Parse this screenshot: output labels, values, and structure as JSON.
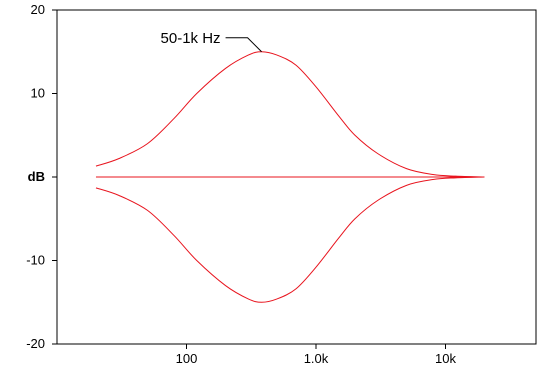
{
  "chart_data": {
    "type": "line",
    "title": "",
    "xlabel": "",
    "ylabel": "dB",
    "x_scale": "log",
    "xlim": [
      10,
      50000
    ],
    "ylim": [
      -20,
      20
    ],
    "x_ticks": [
      {
        "value": 100,
        "label": "100"
      },
      {
        "value": 1000,
        "label": "1.0k"
      },
      {
        "value": 10000,
        "label": "10k"
      }
    ],
    "y_ticks": [
      {
        "value": 20,
        "label": "20"
      },
      {
        "value": 10,
        "label": "10"
      },
      {
        "value": 0,
        "label": "dB"
      },
      {
        "value": -10,
        "label": "-10"
      },
      {
        "value": -20,
        "label": "-20"
      }
    ],
    "grid": false,
    "series_color": "#e8141e",
    "annotation": {
      "text": "50-1k Hz",
      "x": 380,
      "y": 15
    },
    "series": [
      {
        "x": [
          20,
          30,
          50,
          80,
          120,
          200,
          300,
          380,
          500,
          700,
          1000,
          1500,
          2000,
          3000,
          5000,
          8000,
          12000,
          20000
        ],
        "values": [
          1.3,
          2.2,
          4.0,
          7.0,
          10.0,
          13.0,
          14.6,
          15.0,
          14.6,
          13.4,
          10.8,
          7.3,
          5.0,
          2.8,
          1.0,
          0.3,
          0.1,
          0
        ]
      },
      {
        "x": [
          20,
          100,
          1000,
          10000,
          20000
        ],
        "values": [
          0,
          0,
          0,
          0,
          0
        ]
      },
      {
        "x": [
          20,
          30,
          50,
          80,
          120,
          200,
          300,
          380,
          500,
          700,
          1000,
          1500,
          2000,
          3000,
          5000,
          8000,
          12000,
          20000
        ],
        "values": [
          -1.3,
          -2.2,
          -4.0,
          -7.0,
          -10.0,
          -13.0,
          -14.6,
          -15.0,
          -14.6,
          -13.4,
          -10.8,
          -7.3,
          -5.0,
          -2.8,
          -1.0,
          -0.3,
          -0.1,
          0
        ]
      }
    ]
  }
}
